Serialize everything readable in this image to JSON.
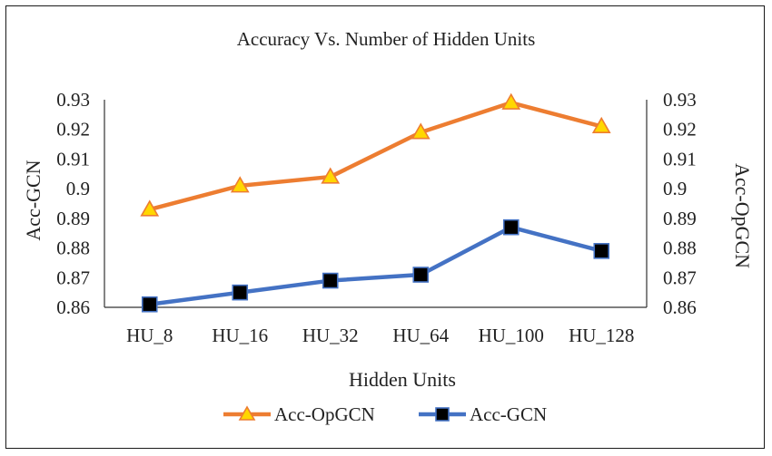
{
  "chart_data": {
    "type": "line",
    "title": "Accuracy Vs. Number of Hidden Units",
    "xlabel": "Hidden Units",
    "ylabel_left": "Acc-GCN",
    "ylabel_right": "Acc-OpGCN",
    "categories": [
      "HU_8",
      "HU_16",
      "HU_32",
      "HU_64",
      "HU_100",
      "HU_128"
    ],
    "ylim": [
      0.86,
      0.93
    ],
    "yticks": [
      "0.86",
      "0.87",
      "0.88",
      "0.89",
      "0.9",
      "0.91",
      "0.92",
      "0.93"
    ],
    "grid": false,
    "legend_position": "bottom",
    "series": [
      {
        "name": "Acc-OpGCN",
        "values": [
          0.893,
          0.901,
          0.904,
          0.919,
          0.929,
          0.921
        ],
        "color": "#ED7D31",
        "marker": "triangle",
        "marker_fill": "#FFD700"
      },
      {
        "name": "Acc-GCN",
        "values": [
          0.861,
          0.865,
          0.869,
          0.871,
          0.887,
          0.879
        ],
        "color": "#4472C4",
        "marker": "square",
        "marker_fill": "#000000"
      }
    ]
  }
}
